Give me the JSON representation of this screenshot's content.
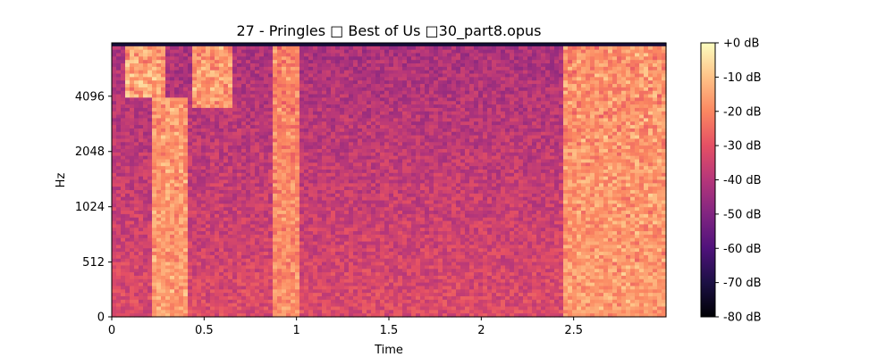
{
  "chart_data": {
    "type": "heatmap",
    "subtype": "spectrogram",
    "title": "27 - Pringles □ Best of Us □30_part8.opus",
    "xlabel": "Time",
    "ylabel": "Hz",
    "xlim": [
      0,
      3.0
    ],
    "ylim": [
      0,
      8000
    ],
    "y_scale": "log-frequency",
    "x_ticks": [
      {
        "value": 0,
        "label": "0"
      },
      {
        "value": 0.5,
        "label": "0.5"
      },
      {
        "value": 1,
        "label": "1"
      },
      {
        "value": 1.5,
        "label": "1.5"
      },
      {
        "value": 2,
        "label": "2"
      },
      {
        "value": 2.5,
        "label": "2.5"
      }
    ],
    "y_ticks": [
      {
        "value": 0,
        "label": "0"
      },
      {
        "value": 512,
        "label": "512"
      },
      {
        "value": 1024,
        "label": "1024"
      },
      {
        "value": 2048,
        "label": "2048"
      },
      {
        "value": 4096,
        "label": "4096"
      }
    ],
    "colorbar": {
      "colormap": "magma",
      "range": [
        -80,
        0
      ],
      "ticks": [
        {
          "value": 0,
          "label": "+0 dB"
        },
        {
          "value": -10,
          "label": "-10 dB"
        },
        {
          "value": -20,
          "label": "-20 dB"
        },
        {
          "value": -30,
          "label": "-30 dB"
        },
        {
          "value": -40,
          "label": "-40 dB"
        },
        {
          "value": -50,
          "label": "-50 dB"
        },
        {
          "value": -60,
          "label": "-60 dB"
        },
        {
          "value": -70,
          "label": "-70 dB"
        },
        {
          "value": -80,
          "label": "-80 dB"
        }
      ]
    },
    "features": [
      {
        "t_start": 0.08,
        "t_end": 0.28,
        "f_low": 4000,
        "f_high": 8000,
        "level_db": -8
      },
      {
        "t_start": 0.22,
        "t_end": 0.42,
        "f_low": 0,
        "f_high": 4000,
        "level_db": -12
      },
      {
        "t_start": 0.44,
        "t_end": 0.66,
        "f_low": 3500,
        "f_high": 8000,
        "level_db": -10
      },
      {
        "t_start": 0.88,
        "t_end": 1.02,
        "f_low": 0,
        "f_high": 8000,
        "level_db": -15
      },
      {
        "t_start": 2.44,
        "t_end": 3.0,
        "f_low": 0,
        "f_high": 8000,
        "level_db": -12
      }
    ]
  }
}
